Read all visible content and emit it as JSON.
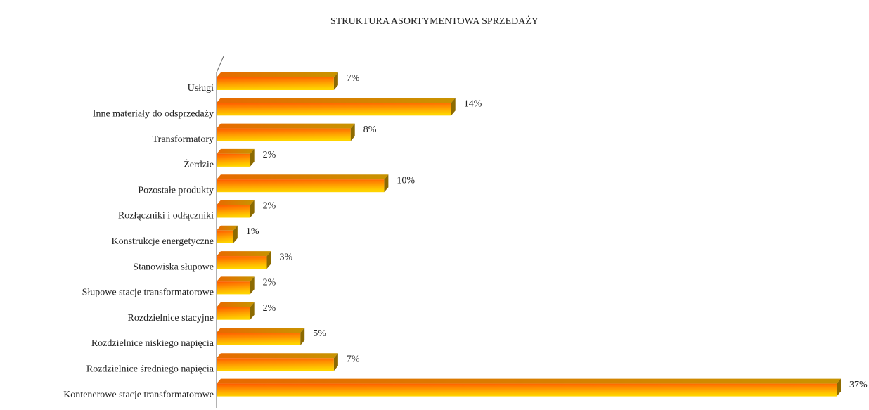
{
  "chart_data": {
    "type": "bar",
    "orientation": "horizontal",
    "title": "STRUKTURA ASORTYMENTOWA SPRZEDAŻY",
    "categories": [
      "Usługi",
      "Inne materiały do odsprzedaży",
      "Transformatory",
      "Żerdzie",
      "Pozostałe produkty",
      "Rozłączniki i odłączniki",
      "Konstrukcje energetyczne",
      "Stanowiska słupowe",
      "Słupowe stacje transformatorowe",
      "Rozdzielnice stacyjne",
      "Rozdzielnice niskiego napięcia",
      "Rozdzielnice średniego napięcia",
      "Kontenerowe stacje transformatorowe"
    ],
    "values": [
      7,
      14,
      8,
      2,
      10,
      2,
      1,
      3,
      2,
      2,
      5,
      7,
      37
    ],
    "value_labels": [
      "7%",
      "14%",
      "8%",
      "2%",
      "10%",
      "2%",
      "1%",
      "3%",
      "2%",
      "2%",
      "5%",
      "7%",
      "37%"
    ],
    "color": "#ff9900"
  }
}
